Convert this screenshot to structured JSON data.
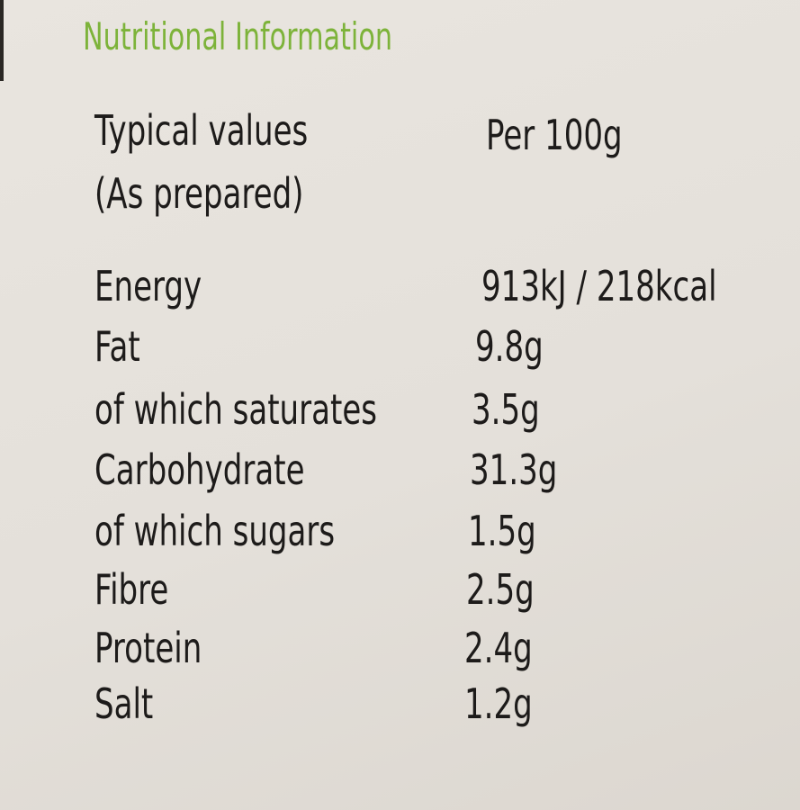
{
  "title": "Nutritional Information",
  "table": {
    "header": {
      "label": [
        "Typical values",
        "(As prepared)"
      ],
      "column": "Per 100g"
    },
    "rows": [
      [
        "Energy",
        "913kJ / 218kcal"
      ],
      [
        "Fat",
        "9.8g"
      ],
      [
        "of which saturates",
        "3.5g"
      ],
      [
        "Carbohydrate",
        "31.3g"
      ],
      [
        "of which sugars",
        "1.5g"
      ],
      [
        "Fibre",
        "2.5g"
      ],
      [
        "Protein",
        "2.4g"
      ],
      [
        "Salt",
        "1.2g"
      ]
    ]
  }
}
